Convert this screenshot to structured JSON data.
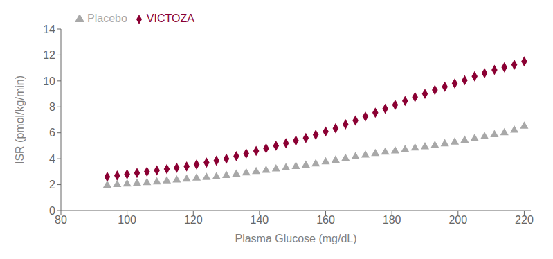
{
  "chart_data": {
    "type": "scatter",
    "x_label": "Plasma Glucose (mg/dL)",
    "y_label": "ISR (pmol/kg/min)",
    "xlim": [
      80,
      222
    ],
    "ylim": [
      0,
      14
    ],
    "xticks": [
      80,
      100,
      120,
      140,
      160,
      180,
      200,
      220
    ],
    "yticks": [
      0,
      2,
      4,
      6,
      8,
      10,
      12,
      14
    ],
    "legend": "upper left",
    "series": [
      {
        "name": "VICTOZA",
        "color": "#8b0033",
        "marker": "diamond",
        "x": [
          94,
          97,
          100,
          103,
          106,
          109,
          112,
          115,
          118,
          121,
          124,
          127,
          130,
          133,
          136,
          139,
          142,
          145,
          148,
          151,
          154,
          157,
          160,
          163,
          166,
          169,
          172,
          175,
          178,
          181,
          184,
          187,
          190,
          193,
          196,
          199,
          202,
          205,
          208,
          211,
          214,
          217,
          220
        ],
        "values": [
          2.6,
          2.7,
          2.8,
          2.9,
          3.0,
          3.1,
          3.2,
          3.3,
          3.4,
          3.55,
          3.7,
          3.85,
          4.0,
          4.2,
          4.4,
          4.6,
          4.8,
          5.0,
          5.2,
          5.4,
          5.6,
          5.85,
          6.1,
          6.35,
          6.65,
          6.95,
          7.25,
          7.55,
          7.85,
          8.15,
          8.45,
          8.75,
          9.0,
          9.3,
          9.55,
          9.8,
          10.05,
          10.35,
          10.6,
          10.85,
          11.05,
          11.25,
          11.5
        ]
      },
      {
        "name": "Placebo",
        "color": "#a8a8a8",
        "marker": "triangle",
        "x": [
          94,
          97,
          100,
          103,
          106,
          109,
          112,
          115,
          118,
          121,
          124,
          127,
          130,
          133,
          136,
          139,
          142,
          145,
          148,
          151,
          154,
          157,
          160,
          163,
          166,
          169,
          172,
          175,
          178,
          181,
          184,
          187,
          190,
          193,
          196,
          199,
          202,
          205,
          208,
          211,
          214,
          217,
          220
        ],
        "values": [
          1.95,
          2.0,
          2.05,
          2.1,
          2.15,
          2.2,
          2.28,
          2.35,
          2.42,
          2.5,
          2.55,
          2.6,
          2.7,
          2.8,
          2.9,
          3.0,
          3.1,
          3.2,
          3.3,
          3.4,
          3.5,
          3.6,
          3.75,
          3.88,
          4.02,
          4.15,
          4.28,
          4.4,
          4.5,
          4.6,
          4.7,
          4.82,
          4.92,
          5.02,
          5.15,
          5.28,
          5.42,
          5.56,
          5.7,
          5.85,
          6.0,
          6.2,
          6.5
        ]
      }
    ]
  }
}
